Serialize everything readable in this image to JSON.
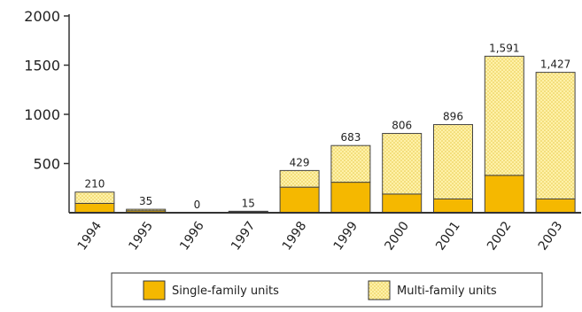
{
  "chart_data": {
    "type": "bar",
    "stacked": true,
    "categories": [
      "1994",
      "1995",
      "1996",
      "1997",
      "1998",
      "1999",
      "2000",
      "2001",
      "2002",
      "2003"
    ],
    "series": [
      {
        "name": "Single-family units",
        "values": [
          95,
          20,
          0,
          8,
          260,
          310,
          190,
          140,
          380,
          140
        ]
      },
      {
        "name": "Multi-family units",
        "values": [
          115,
          15,
          0,
          7,
          169,
          373,
          616,
          756,
          1211,
          1287
        ]
      }
    ],
    "totals_labels": [
      "210",
      "35",
      "0",
      "15",
      "429",
      "683",
      "806",
      "896",
      "1,591",
      "1,427"
    ],
    "totals": [
      210,
      35,
      0,
      15,
      429,
      683,
      806,
      896,
      1591,
      1427
    ],
    "yticks": [
      "500",
      "1000",
      "1500",
      "2000"
    ],
    "ytick_values": [
      500,
      1000,
      1500,
      2000
    ],
    "ylim": [
      0,
      2000
    ],
    "colors": {
      "single": "#f5b800",
      "multi": "#fff1a8",
      "multi_dot": "#e7c94a",
      "outline": "#444444"
    },
    "legend_position": "bottom-center"
  }
}
